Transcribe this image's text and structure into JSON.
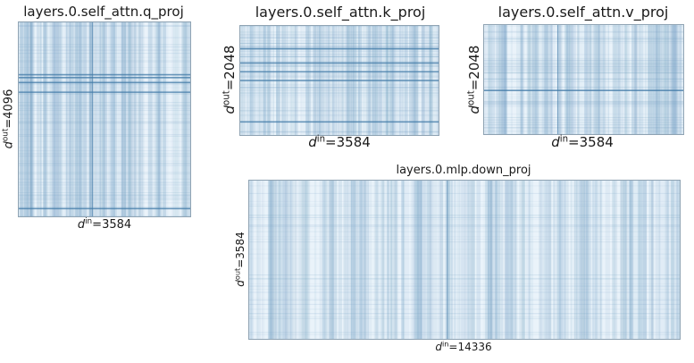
{
  "chart_data": [
    {
      "type": "heatmap",
      "title": "layers.0.self_attn.q_proj",
      "xlabel": {
        "sym": "d",
        "sup": "in",
        "eq": "=3584"
      },
      "ylabel": {
        "sym": "d",
        "sup": "out",
        "eq": "=4096"
      },
      "shape": [
        4096,
        3584
      ],
      "colormap": "Blues",
      "dark_rows": [
        0.27,
        0.285,
        0.31,
        0.36,
        0.96
      ],
      "dark_cols": [
        0.43
      ]
    },
    {
      "type": "heatmap",
      "title": "layers.0.self_attn.k_proj",
      "xlabel": {
        "sym": "d",
        "sup": "in",
        "eq": "=3584"
      },
      "ylabel": {
        "sym": "d",
        "sup": "out",
        "eq": "=2048"
      },
      "shape": [
        2048,
        3584
      ],
      "colormap": "Blues",
      "dark_rows": [
        0.21,
        0.34,
        0.42,
        0.5,
        0.88
      ],
      "dark_cols": []
    },
    {
      "type": "heatmap",
      "title": "layers.0.self_attn.v_proj",
      "xlabel": {
        "sym": "d",
        "sup": "in",
        "eq": "=3584"
      },
      "ylabel": {
        "sym": "d",
        "sup": "out",
        "eq": "=2048"
      },
      "shape": [
        2048,
        3584
      ],
      "colormap": "Blues",
      "dark_rows": [
        0.6
      ],
      "dark_cols": [
        0.37
      ]
    },
    {
      "type": "heatmap",
      "title": "layers.0.mlp.down_proj",
      "xlabel": {
        "sym": "d",
        "sup": "in",
        "eq": "=14336"
      },
      "ylabel": {
        "sym": "d",
        "sup": "out",
        "eq": "=3584"
      },
      "shape": [
        3584,
        14336
      ],
      "colormap": "Blues",
      "dark_rows": [],
      "dark_cols": [
        0.46
      ]
    }
  ]
}
